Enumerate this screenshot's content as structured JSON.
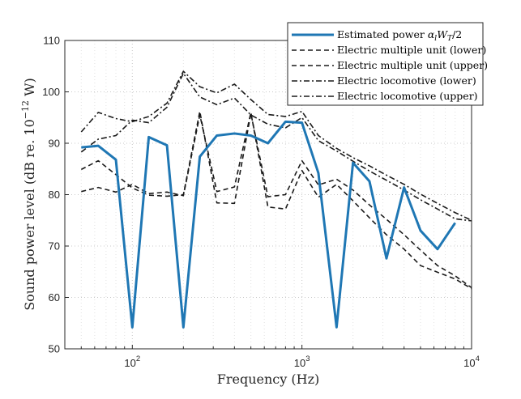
{
  "chart_data": {
    "type": "line",
    "xscale": "log",
    "xlim": [
      40,
      10000
    ],
    "ylim": [
      50,
      110
    ],
    "xlabel": "Frequency (Hz)",
    "ylabel_main": "Sound power level (dB re. 10",
    "ylabel_exp": "−12",
    "ylabel_tail": " W)",
    "grid": true,
    "legend_position": "top-right",
    "yticks": [
      50,
      60,
      70,
      80,
      90,
      100,
      110
    ],
    "xticks": [
      {
        "value": 100,
        "base": "10",
        "exp": "2"
      },
      {
        "value": 1000,
        "base": "10",
        "exp": "3"
      },
      {
        "value": 10000,
        "base": "10",
        "exp": "4"
      }
    ],
    "x": [
      50,
      63,
      80,
      100,
      125,
      160,
      200,
      250,
      315,
      400,
      500,
      630,
      800,
      1000,
      1250,
      1600,
      2000,
      2500,
      3150,
      4000,
      5000,
      6300,
      8000,
      10000
    ],
    "series": [
      {
        "name_main": "Estimated power ",
        "name_math": "α",
        "name_sub1": "l",
        "name_math2": "W",
        "name_sub2": "T",
        "name_tail": "/2",
        "color": "#1f77b4",
        "style": "solid",
        "width": 3,
        "values": [
          89.2,
          89.5,
          86.8,
          54.2,
          91.2,
          89.6,
          54.2,
          87.4,
          91.5,
          91.9,
          91.5,
          90.0,
          94.2,
          94.0,
          84.2,
          54.2,
          86.2,
          82.6,
          67.6,
          81.4,
          73.0,
          69.4,
          74.5,
          null
        ]
      },
      {
        "name": "Electric multiple unit (lower)",
        "color": "#1a1a1a",
        "style": "dashed",
        "width": 1.6,
        "values": [
          80.6,
          81.4,
          80.5,
          82.0,
          80.2,
          80.5,
          79.8,
          95.5,
          80.6,
          81.5,
          96.0,
          77.6,
          77.2,
          84.7,
          79.5,
          82.0,
          78.8,
          75.5,
          72.2,
          69.4,
          66.2,
          64.9,
          63.6,
          61.7
        ]
      },
      {
        "name": "Electric multiple unit (upper)",
        "color": "#1a1a1a",
        "style": "dashed",
        "width": 1.6,
        "values": [
          84.9,
          86.6,
          83.9,
          81.3,
          79.9,
          79.7,
          80.0,
          96.2,
          78.4,
          78.3,
          95.8,
          79.6,
          80.0,
          86.6,
          81.9,
          83.0,
          80.9,
          78.0,
          75.2,
          72.2,
          69.2,
          66.2,
          64.2,
          61.9
        ]
      },
      {
        "name": "Electric locomotive (lower)",
        "color": "#1a1a1a",
        "style": "dashdot",
        "width": 1.6,
        "values": [
          88.3,
          90.8,
          91.5,
          94.5,
          94.0,
          97.0,
          103.6,
          99.0,
          97.5,
          98.8,
          95.5,
          93.7,
          93.0,
          95.0,
          90.5,
          88.5,
          86.5,
          84.6,
          82.8,
          80.9,
          79.0,
          77.2,
          75.3,
          74.9
        ]
      },
      {
        "name": "Electric locomotive (upper)",
        "color": "#1a1a1a",
        "style": "dashdot",
        "width": 1.6,
        "values": [
          92.2,
          96.0,
          94.8,
          94.2,
          95.2,
          97.8,
          104.0,
          101.0,
          99.8,
          101.5,
          98.5,
          95.6,
          95.2,
          96.2,
          91.5,
          89.0,
          87.2,
          85.6,
          83.8,
          82.0,
          80.1,
          78.3,
          76.5,
          75.0
        ]
      }
    ]
  }
}
